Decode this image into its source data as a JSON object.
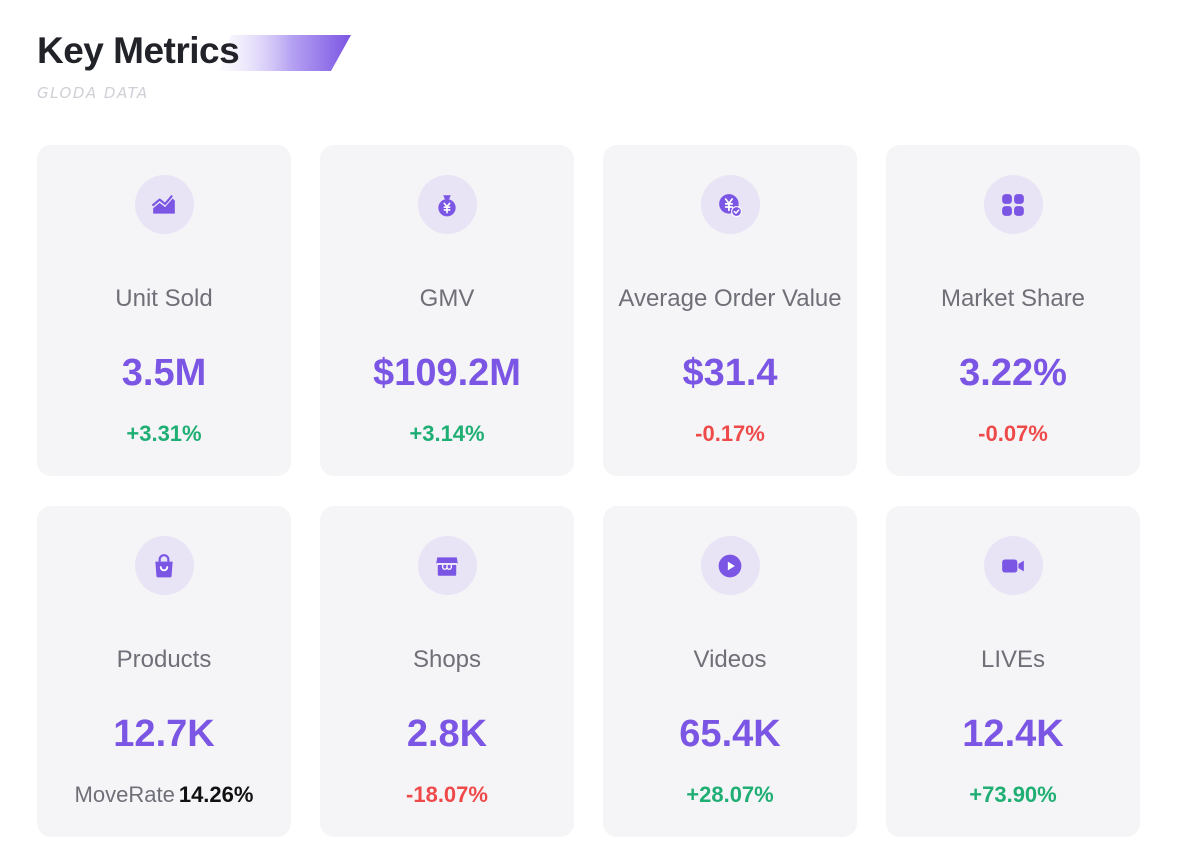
{
  "header": {
    "title": "Key Metrics",
    "subtitle": "GLODA DATA"
  },
  "colors": {
    "accent": "#7b55e3",
    "card_bg": "#f5f5f7",
    "icon_bg": "#e8e4f6",
    "positive": "#1fae73",
    "negative": "#ef4a4a"
  },
  "metrics": [
    {
      "icon": "chart-trend-icon",
      "label": "Unit Sold",
      "value": "3.5M",
      "change": "+3.31%",
      "trend": "up"
    },
    {
      "icon": "money-bag-icon",
      "label": "GMV",
      "value": "$109.2M",
      "change": "+3.14%",
      "trend": "up"
    },
    {
      "icon": "coin-check-icon",
      "label": "Average Order Value",
      "value": "$31.4",
      "change": "-0.17%",
      "trend": "down"
    },
    {
      "icon": "grid-apps-icon",
      "label": "Market Share",
      "value": "3.22%",
      "change": "-0.07%",
      "trend": "down"
    },
    {
      "icon": "shopping-bag-icon",
      "label": "Products",
      "value": "12.7K",
      "move_label": "MoveRate",
      "move_value": "14.26%",
      "trend": "move"
    },
    {
      "icon": "store-icon",
      "label": "Shops",
      "value": "2.8K",
      "change": "-18.07%",
      "trend": "down"
    },
    {
      "icon": "play-video-icon",
      "label": "Videos",
      "value": "65.4K",
      "change": "+28.07%",
      "trend": "up"
    },
    {
      "icon": "video-camera-icon",
      "label": "LIVEs",
      "value": "12.4K",
      "change": "+73.90%",
      "trend": "up"
    }
  ]
}
